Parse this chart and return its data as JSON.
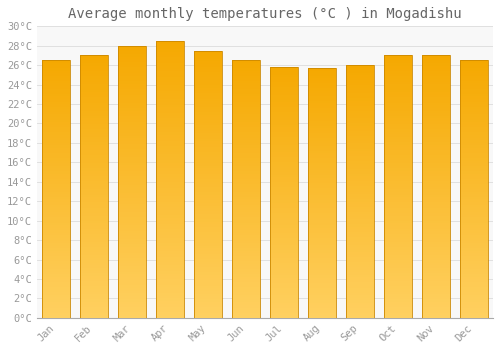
{
  "title": "Average monthly temperatures (°C ) in Mogadishu",
  "months": [
    "Jan",
    "Feb",
    "Mar",
    "Apr",
    "May",
    "Jun",
    "Jul",
    "Aug",
    "Sep",
    "Oct",
    "Nov",
    "Dec"
  ],
  "values": [
    26.5,
    27.0,
    28.0,
    28.5,
    27.5,
    26.5,
    25.8,
    25.7,
    26.0,
    27.0,
    27.0,
    26.5
  ],
  "ylim": [
    0,
    30
  ],
  "yticks": [
    0,
    2,
    4,
    6,
    8,
    10,
    12,
    14,
    16,
    18,
    20,
    22,
    24,
    26,
    28,
    30
  ],
  "bar_color_light": "#FFD060",
  "bar_color_dark": "#F5A800",
  "bar_edge_color": "#CC8800",
  "background_color": "#FFFFFF",
  "plot_bg_color": "#F8F8F8",
  "grid_color": "#E0E0E0",
  "title_fontsize": 10,
  "tick_fontsize": 7.5,
  "tick_label_color": "#999999",
  "title_color": "#666666",
  "bar_width": 0.75
}
